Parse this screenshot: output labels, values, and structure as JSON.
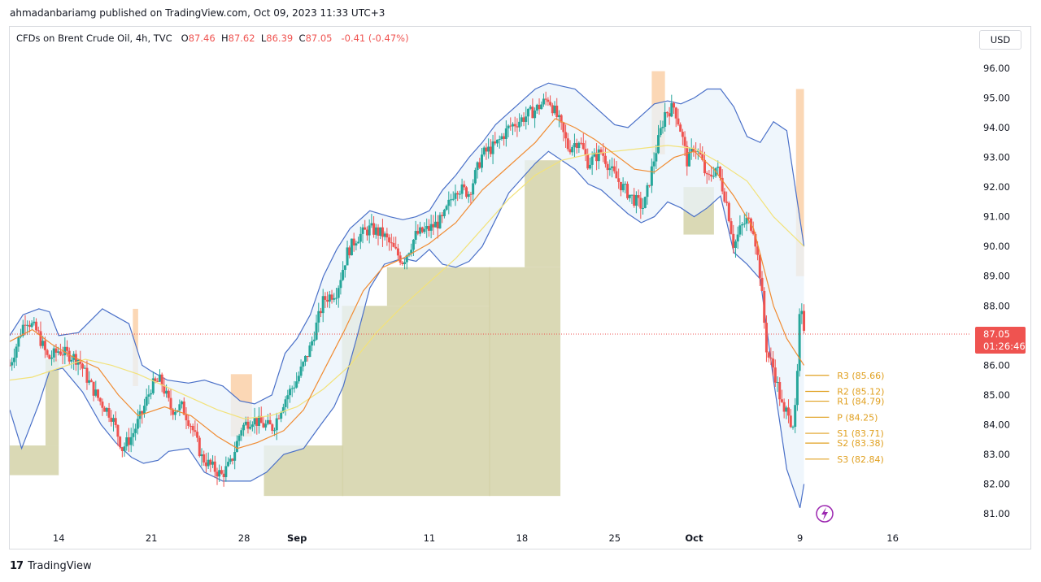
{
  "header": {
    "published_line": "ahmadanbariamg published on TradingView.com, Oct 09, 2023 11:33 UTC+3"
  },
  "legend": {
    "symbol": "CFDs on Brent Crude Oil, 4h, TVC",
    "o_label": "O",
    "o_value": "87.46",
    "h_label": "H",
    "h_value": "87.62",
    "l_label": "L",
    "l_value": "86.39",
    "c_label": "C",
    "c_value": "87.05",
    "change": "-0.41 (-0.47%)"
  },
  "currency_button": "USD",
  "footer": {
    "logo_glyph": "17",
    "brand": "TradingView"
  },
  "colors": {
    "up": "#26a69a",
    "down": "#ef5350",
    "band": "#4a70c8",
    "band_fill": "#eaf3fb",
    "ema_orange": "#f08c33",
    "sma_yellow": "#f2e27a",
    "zone": "#d4d2a8",
    "supply": "#fbd3ad",
    "pivot": "#e0a020"
  },
  "chart_data": {
    "type": "candlestick",
    "ylim": [
      80.4,
      96.6
    ],
    "y_ticks": [
      "96.00",
      "95.00",
      "94.00",
      "93.00",
      "92.00",
      "91.00",
      "90.00",
      "89.00",
      "88.00",
      "87.00",
      "86.00",
      "85.00",
      "84.00",
      "83.00",
      "82.00",
      "81.00"
    ],
    "y_tick_values": [
      96,
      95,
      94,
      93,
      92,
      91,
      90,
      89,
      88,
      87,
      86,
      85,
      84,
      83,
      82,
      81
    ],
    "x_ticks": [
      {
        "label": "14",
        "day": 14
      },
      {
        "label": "21",
        "day": 21
      },
      {
        "label": "28",
        "day": 28
      },
      {
        "label": "Sep",
        "day": 32
      },
      {
        "label": "11",
        "day": 42
      },
      {
        "label": "18",
        "day": 49
      },
      {
        "label": "25",
        "day": 56
      },
      {
        "label": "Oct",
        "day": 62
      },
      {
        "label": "9",
        "day": 70
      },
      {
        "label": "16",
        "day": 77
      }
    ],
    "x_range_days": [
      10.3,
      82.8
    ],
    "current_price": {
      "value": 87.05,
      "label": "87.05",
      "countdown": "01:26:46"
    },
    "pivots": [
      {
        "name": "R3",
        "value": 85.66,
        "label": "R3 (85.66)"
      },
      {
        "name": "R2",
        "value": 85.12,
        "label": "R2 (85.12)"
      },
      {
        "name": "R1",
        "value": 84.79,
        "label": "R1 (84.79)"
      },
      {
        "name": "P",
        "value": 84.25,
        "label": "P (84.25)"
      },
      {
        "name": "S1",
        "value": 83.71,
        "label": "S1 (83.71)"
      },
      {
        "name": "S2",
        "value": 83.38,
        "label": "S2 (83.38)"
      },
      {
        "name": "S3",
        "value": 82.84,
        "label": "S3 (82.84)"
      }
    ],
    "path": [
      [
        10.3,
        86.0
      ],
      [
        11.5,
        87.6
      ],
      [
        12.4,
        87.1
      ],
      [
        13.2,
        86.2
      ],
      [
        14.0,
        86.5
      ],
      [
        15.5,
        86.2
      ],
      [
        16.2,
        85.5
      ],
      [
        17.1,
        84.8
      ],
      [
        18.0,
        84.3
      ],
      [
        18.8,
        83.2
      ],
      [
        19.5,
        83.6
      ],
      [
        20.3,
        84.4
      ],
      [
        21.0,
        85.3
      ],
      [
        21.7,
        85.5
      ],
      [
        22.5,
        84.5
      ],
      [
        23.3,
        84.6
      ],
      [
        24.0,
        84.0
      ],
      [
        24.8,
        82.9
      ],
      [
        25.5,
        82.6
      ],
      [
        26.3,
        82.3
      ],
      [
        27.0,
        82.7
      ],
      [
        27.8,
        83.9
      ],
      [
        28.6,
        84.2
      ],
      [
        29.4,
        84.0
      ],
      [
        30.2,
        83.9
      ],
      [
        31.0,
        84.8
      ],
      [
        32.0,
        85.5
      ],
      [
        33.0,
        86.6
      ],
      [
        34.0,
        88.2
      ],
      [
        35.0,
        88.5
      ],
      [
        35.8,
        89.8
      ],
      [
        36.5,
        90.3
      ],
      [
        37.5,
        90.6
      ],
      [
        38.5,
        90.4
      ],
      [
        39.3,
        89.9
      ],
      [
        40.0,
        89.5
      ],
      [
        41.0,
        90.4
      ],
      [
        42.0,
        90.6
      ],
      [
        43.0,
        90.9
      ],
      [
        44.0,
        92.0
      ],
      [
        45.0,
        91.8
      ],
      [
        46.0,
        93.1
      ],
      [
        47.0,
        93.4
      ],
      [
        48.0,
        94.0
      ],
      [
        49.0,
        94.3
      ],
      [
        50.0,
        94.6
      ],
      [
        51.0,
        95.0
      ],
      [
        51.8,
        94.2
      ],
      [
        52.5,
        93.3
      ],
      [
        53.3,
        93.6
      ],
      [
        54.0,
        92.8
      ],
      [
        55.0,
        93.2
      ],
      [
        55.8,
        92.5
      ],
      [
        56.6,
        92.0
      ],
      [
        57.4,
        91.6
      ],
      [
        58.2,
        91.3
      ],
      [
        59.0,
        93.0
      ],
      [
        59.8,
        94.5
      ],
      [
        60.5,
        94.7
      ],
      [
        61.0,
        93.9
      ],
      [
        61.5,
        92.8
      ],
      [
        62.0,
        93.4
      ],
      [
        62.5,
        93.0
      ],
      [
        63.0,
        92.2
      ],
      [
        63.7,
        92.7
      ],
      [
        64.5,
        91.4
      ],
      [
        65.0,
        90.0
      ],
      [
        65.5,
        90.6
      ],
      [
        66.0,
        90.9
      ],
      [
        66.5,
        90.6
      ],
      [
        67.0,
        89.0
      ],
      [
        67.5,
        86.4
      ],
      [
        68.0,
        85.9
      ],
      [
        68.5,
        84.9
      ],
      [
        68.8,
        84.3
      ],
      [
        69.1,
        84.6
      ],
      [
        69.4,
        83.9
      ],
      [
        69.7,
        84.6
      ],
      [
        70.0,
        87.9
      ],
      [
        70.3,
        87.3
      ]
    ],
    "bollinger_upper": [
      [
        10.3,
        87.0
      ],
      [
        11.3,
        87.7
      ],
      [
        12.5,
        87.9
      ],
      [
        13.3,
        87.8
      ],
      [
        14.0,
        87.0
      ],
      [
        15.5,
        87.1
      ],
      [
        17.3,
        87.9
      ],
      [
        19.3,
        87.4
      ],
      [
        20.3,
        86.0
      ],
      [
        21.0,
        85.8
      ],
      [
        22.2,
        85.5
      ],
      [
        23.8,
        85.4
      ],
      [
        25.0,
        85.5
      ],
      [
        26.4,
        85.3
      ],
      [
        27.7,
        84.8
      ],
      [
        28.8,
        84.7
      ],
      [
        30.1,
        85.0
      ],
      [
        31.1,
        86.4
      ],
      [
        32.0,
        86.9
      ],
      [
        33.0,
        87.7
      ],
      [
        34.0,
        89.0
      ],
      [
        35.0,
        89.9
      ],
      [
        36.0,
        90.6
      ],
      [
        37.5,
        91.2
      ],
      [
        39.0,
        91.0
      ],
      [
        40.0,
        90.9
      ],
      [
        41.0,
        91.0
      ],
      [
        42.0,
        91.2
      ],
      [
        43.0,
        91.9
      ],
      [
        44.0,
        92.4
      ],
      [
        45.0,
        93.0
      ],
      [
        46.0,
        93.5
      ],
      [
        47.0,
        94.1
      ],
      [
        48.0,
        94.5
      ],
      [
        49.0,
        94.9
      ],
      [
        50.0,
        95.3
      ],
      [
        51.0,
        95.5
      ],
      [
        52.0,
        95.4
      ],
      [
        53.0,
        95.3
      ],
      [
        54.0,
        94.9
      ],
      [
        55.0,
        94.5
      ],
      [
        56.0,
        94.1
      ],
      [
        57.0,
        94.0
      ],
      [
        58.0,
        94.4
      ],
      [
        59.0,
        94.8
      ],
      [
        60.0,
        94.9
      ],
      [
        61.0,
        94.8
      ],
      [
        62.0,
        95.0
      ],
      [
        63.0,
        95.3
      ],
      [
        64.0,
        95.3
      ],
      [
        65.0,
        94.7
      ],
      [
        66.0,
        93.7
      ],
      [
        67.0,
        93.5
      ],
      [
        68.0,
        94.2
      ],
      [
        69.0,
        93.9
      ],
      [
        70.3,
        90.0
      ]
    ],
    "bollinger_lower": [
      [
        10.3,
        84.5
      ],
      [
        11.2,
        83.2
      ],
      [
        12.5,
        84.7
      ],
      [
        13.3,
        85.8
      ],
      [
        14.3,
        85.9
      ],
      [
        15.8,
        85.1
      ],
      [
        17.2,
        84.0
      ],
      [
        18.3,
        83.4
      ],
      [
        19.5,
        82.9
      ],
      [
        20.4,
        82.7
      ],
      [
        21.5,
        82.8
      ],
      [
        22.3,
        83.1
      ],
      [
        23.8,
        83.2
      ],
      [
        25.0,
        82.4
      ],
      [
        26.4,
        82.1
      ],
      [
        27.5,
        82.1
      ],
      [
        28.5,
        82.1
      ],
      [
        29.7,
        82.4
      ],
      [
        31.0,
        83.0
      ],
      [
        32.5,
        83.2
      ],
      [
        33.8,
        84.0
      ],
      [
        34.8,
        84.6
      ],
      [
        35.5,
        85.3
      ],
      [
        36.5,
        86.9
      ],
      [
        37.5,
        88.6
      ],
      [
        38.6,
        89.4
      ],
      [
        40.0,
        89.6
      ],
      [
        41.0,
        89.5
      ],
      [
        42.0,
        89.9
      ],
      [
        43.0,
        89.4
      ],
      [
        44.0,
        89.3
      ],
      [
        45.0,
        89.5
      ],
      [
        46.0,
        90.0
      ],
      [
        47.0,
        90.9
      ],
      [
        48.0,
        91.8
      ],
      [
        49.0,
        92.3
      ],
      [
        50.0,
        92.8
      ],
      [
        51.0,
        93.2
      ],
      [
        52.0,
        92.9
      ],
      [
        53.0,
        92.6
      ],
      [
        54.0,
        92.1
      ],
      [
        55.0,
        91.9
      ],
      [
        56.0,
        91.5
      ],
      [
        57.0,
        91.1
      ],
      [
        58.0,
        90.8
      ],
      [
        59.0,
        91.0
      ],
      [
        60.0,
        91.5
      ],
      [
        61.0,
        91.3
      ],
      [
        62.0,
        91.0
      ],
      [
        63.0,
        91.3
      ],
      [
        64.0,
        91.7
      ],
      [
        65.0,
        89.8
      ],
      [
        66.0,
        89.4
      ],
      [
        67.0,
        88.9
      ],
      [
        68.0,
        85.5
      ],
      [
        69.0,
        82.5
      ],
      [
        70.0,
        81.2
      ],
      [
        70.3,
        82.0
      ]
    ],
    "ema": [
      [
        10.3,
        86.8
      ],
      [
        12.0,
        87.2
      ],
      [
        13.5,
        86.7
      ],
      [
        15.0,
        86.3
      ],
      [
        17.0,
        85.9
      ],
      [
        18.5,
        85.0
      ],
      [
        20.0,
        84.3
      ],
      [
        22.0,
        84.6
      ],
      [
        24.0,
        84.3
      ],
      [
        26.0,
        83.6
      ],
      [
        27.5,
        83.2
      ],
      [
        29.0,
        83.4
      ],
      [
        31.0,
        83.8
      ],
      [
        32.5,
        84.5
      ],
      [
        34.0,
        85.8
      ],
      [
        35.5,
        87.1
      ],
      [
        37.0,
        88.5
      ],
      [
        38.5,
        89.3
      ],
      [
        40.0,
        89.6
      ],
      [
        42.0,
        90.1
      ],
      [
        44.0,
        90.8
      ],
      [
        46.0,
        91.9
      ],
      [
        48.0,
        92.7
      ],
      [
        50.0,
        93.5
      ],
      [
        51.5,
        94.3
      ],
      [
        53.0,
        94.0
      ],
      [
        54.5,
        93.6
      ],
      [
        56.0,
        93.1
      ],
      [
        57.5,
        92.6
      ],
      [
        59.0,
        92.5
      ],
      [
        60.5,
        93.0
      ],
      [
        62.0,
        93.2
      ],
      [
        63.5,
        92.6
      ],
      [
        65.0,
        91.7
      ],
      [
        66.5,
        90.6
      ],
      [
        68.0,
        88.0
      ],
      [
        69.0,
        86.9
      ],
      [
        70.3,
        86.0
      ]
    ],
    "sma": [
      [
        10.3,
        85.5
      ],
      [
        12.0,
        85.6
      ],
      [
        14.0,
        85.9
      ],
      [
        16.0,
        86.2
      ],
      [
        18.0,
        86.0
      ],
      [
        20.0,
        85.7
      ],
      [
        22.0,
        85.3
      ],
      [
        24.0,
        84.9
      ],
      [
        26.0,
        84.5
      ],
      [
        28.0,
        84.2
      ],
      [
        30.0,
        84.3
      ],
      [
        32.0,
        84.6
      ],
      [
        34.0,
        85.2
      ],
      [
        36.0,
        86.0
      ],
      [
        38.0,
        87.1
      ],
      [
        40.0,
        88.0
      ],
      [
        42.0,
        88.8
      ],
      [
        44.0,
        89.6
      ],
      [
        46.0,
        90.6
      ],
      [
        48.0,
        91.6
      ],
      [
        50.0,
        92.4
      ],
      [
        52.0,
        92.9
      ],
      [
        54.0,
        93.1
      ],
      [
        56.0,
        93.2
      ],
      [
        58.0,
        93.3
      ],
      [
        60.0,
        93.4
      ],
      [
        62.0,
        93.3
      ],
      [
        64.0,
        92.8
      ],
      [
        66.0,
        92.2
      ],
      [
        68.0,
        91.0
      ],
      [
        70.3,
        90.0
      ]
    ],
    "zones": [
      {
        "x0": 10.3,
        "x1": 14.0,
        "y0": 82.3,
        "y1": 83.3
      },
      {
        "x0": 13.0,
        "x1": 14.0,
        "y0": 83.3,
        "y1": 86.2
      },
      {
        "x0": 29.5,
        "x1": 35.5,
        "y0": 81.6,
        "y1": 83.3
      },
      {
        "x0": 35.4,
        "x1": 46.6,
        "y0": 81.6,
        "y1": 88.0
      },
      {
        "x0": 38.8,
        "x1": 46.6,
        "y0": 88.0,
        "y1": 89.3
      },
      {
        "x0": 46.5,
        "x1": 51.9,
        "y0": 81.6,
        "y1": 89.3
      },
      {
        "x0": 49.2,
        "x1": 51.9,
        "y0": 89.3,
        "y1": 92.9
      },
      {
        "x0": 61.2,
        "x1": 63.5,
        "y0": 90.4,
        "y1": 92.0
      }
    ],
    "supply_zones": [
      {
        "x0": 19.6,
        "x1": 20.0,
        "y0": 85.3,
        "y1": 87.9
      },
      {
        "x0": 27.0,
        "x1": 28.6,
        "y0": 83.6,
        "y1": 85.7
      },
      {
        "x0": 58.8,
        "x1": 59.8,
        "y0": 93.1,
        "y1": 95.9
      },
      {
        "x0": 69.7,
        "x1": 70.3,
        "y0": 89.0,
        "y1": 95.3
      }
    ]
  }
}
